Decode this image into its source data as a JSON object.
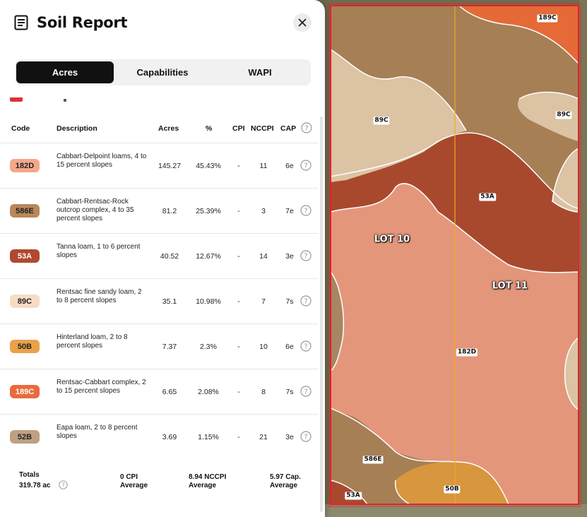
{
  "panel": {
    "title": "Soil Report",
    "tabs": [
      {
        "label": "Acres",
        "active": true
      },
      {
        "label": "Capabilities",
        "active": false
      },
      {
        "label": "WAPI",
        "active": false
      }
    ],
    "columns": {
      "code": "Code",
      "description": "Description",
      "acres": "Acres",
      "percent": "%",
      "cpi": "CPI",
      "nccpi": "NCCPI",
      "cap": "CAP"
    },
    "rows": [
      {
        "code": "182D",
        "color": "#f4a88a",
        "description": "Cabbart-Delpoint loams, 4 to 15 percent slopes",
        "acres": "145.27",
        "percent": "45.43%",
        "cpi": "-",
        "nccpi": "11",
        "cap": "6e"
      },
      {
        "code": "586E",
        "color": "#b9875a",
        "description": "Cabbart-Rentsac-Rock outcrop complex, 4 to 35 percent slopes",
        "acres": "81.2",
        "percent": "25.39%",
        "cpi": "-",
        "nccpi": "3",
        "cap": "7e"
      },
      {
        "code": "53A",
        "color": "#b0492e",
        "description": "Tanna loam, 1 to 6 percent slopes",
        "acres": "40.52",
        "percent": "12.67%",
        "cpi": "-",
        "nccpi": "14",
        "cap": "3e"
      },
      {
        "code": "89C",
        "color": "#f6dcc4",
        "description": "Rentsac fine sandy loam, 2 to 8 percent slopes",
        "acres": "35.1",
        "percent": "10.98%",
        "cpi": "-",
        "nccpi": "7",
        "cap": "7s"
      },
      {
        "code": "50B",
        "color": "#eaa24a",
        "description": "Hinterland loam, 2 to 8 percent slopes",
        "acres": "7.37",
        "percent": "2.3%",
        "cpi": "-",
        "nccpi": "10",
        "cap": "6e"
      },
      {
        "code": "189C",
        "color": "#ea6a3e",
        "description": "Rentsac-Cabbart complex, 2 to 15 percent slopes",
        "acres": "6.65",
        "percent": "2.08%",
        "cpi": "-",
        "nccpi": "8",
        "cap": "7s"
      },
      {
        "code": "52B",
        "color": "#bfa083",
        "description": "Eapa loam, 2 to 8 percent slopes",
        "acres": "3.69",
        "percent": "1.15%",
        "cpi": "-",
        "nccpi": "21",
        "cap": "3e"
      }
    ],
    "totals": {
      "label": "Totals",
      "acres": "319.78 ac",
      "cpi_value": "0 CPI",
      "cpi_sub": "Average",
      "nccpi_value": "8.94 NCCPI",
      "nccpi_sub": "Average",
      "cap_value": "5.97 Cap.",
      "cap_sub": "Average"
    }
  },
  "map": {
    "labels": [
      "189C",
      "89C",
      "89C",
      "53A",
      "182D",
      "586E",
      "50B",
      "53A"
    ],
    "lots": [
      "LOT 10",
      "LOT 11"
    ],
    "colors": {
      "boundary": "#e8202a",
      "section_line": "#f5a623",
      "soil_edge": "#ffffff"
    }
  },
  "icons": {
    "header": "document-icon",
    "close": "close-icon",
    "help": "question-circle-icon"
  }
}
